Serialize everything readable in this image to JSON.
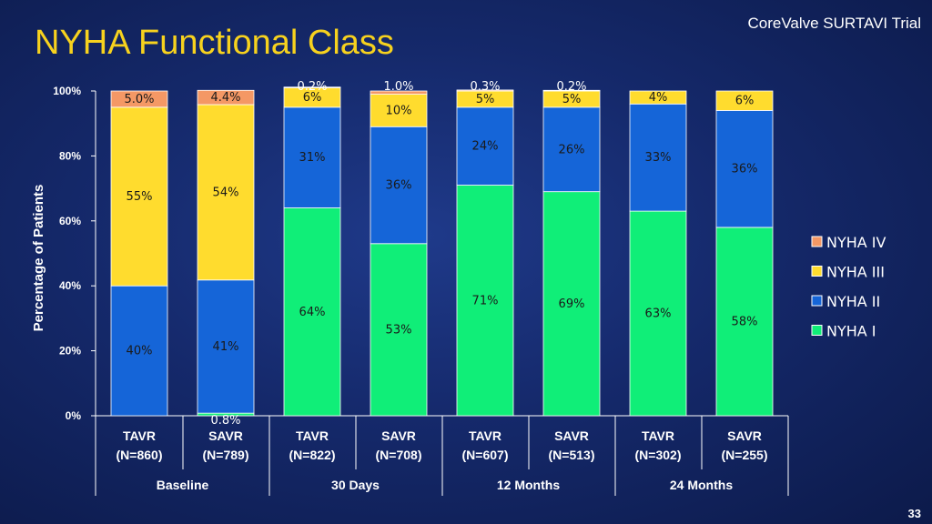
{
  "slide": {
    "title": "NYHA Functional Class",
    "trial": "CoreValve SURTAVI Trial",
    "page_number": "33"
  },
  "chart_data": {
    "type": "bar",
    "stacked": true,
    "ylabel": "Percentage of Patients",
    "ylim": [
      0,
      100
    ],
    "yticks": [
      "0%",
      "20%",
      "40%",
      "60%",
      "80%",
      "100%"
    ],
    "legend_position": "right",
    "categories": [
      {
        "arm": "TAVR",
        "n": "(N=860)"
      },
      {
        "arm": "SAVR",
        "n": "(N=789)"
      },
      {
        "arm": "TAVR",
        "n": "(N=822)"
      },
      {
        "arm": "SAVR",
        "n": "(N=708)"
      },
      {
        "arm": "TAVR",
        "n": "(N=607)"
      },
      {
        "arm": "SAVR",
        "n": "(N=513)"
      },
      {
        "arm": "TAVR",
        "n": "(N=302)"
      },
      {
        "arm": "SAVR",
        "n": "(N=255)"
      }
    ],
    "groups": [
      {
        "label": "Baseline",
        "bars": [
          0,
          1
        ]
      },
      {
        "label": "30 Days",
        "bars": [
          2,
          3
        ]
      },
      {
        "label": "12 Months",
        "bars": [
          4,
          5
        ]
      },
      {
        "label": "24 Months",
        "bars": [
          6,
          7
        ]
      }
    ],
    "series": [
      {
        "name": "NYHA I",
        "color": "#10ee78",
        "values": [
          0,
          0.8,
          64,
          53,
          71,
          69,
          63,
          58
        ],
        "labels": [
          "",
          "0.8%",
          "64%",
          "53%",
          "71%",
          "69%",
          "63%",
          "58%"
        ]
      },
      {
        "name": "NYHA II",
        "color": "#1565d8",
        "values": [
          40,
          41,
          31,
          36,
          24,
          26,
          33,
          36
        ],
        "labels": [
          "40%",
          "41%",
          "31%",
          "36%",
          "24%",
          "26%",
          "33%",
          "36%"
        ]
      },
      {
        "name": "NYHA III",
        "color": "#ffdc2e",
        "values": [
          55,
          54,
          6,
          10,
          5,
          5,
          4,
          6
        ],
        "labels": [
          "55%",
          "54%",
          "6%",
          "10%",
          "5%",
          "5%",
          "4%",
          "6%"
        ]
      },
      {
        "name": "NYHA IV",
        "color": "#f49865",
        "values": [
          5.0,
          4.4,
          0.2,
          1.0,
          0.3,
          0.2,
          0,
          0
        ],
        "labels": [
          "5.0%",
          "4.4%",
          "0.2%",
          "1.0%",
          "0.3%",
          "0.2%",
          "",
          ""
        ]
      }
    ],
    "legend_order": [
      "NYHA IV",
      "NYHA III",
      "NYHA II",
      "NYHA I"
    ]
  }
}
